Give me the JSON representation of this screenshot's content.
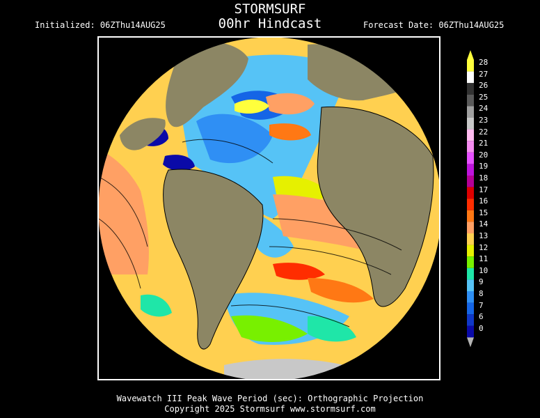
{
  "header": {
    "title": "STORMSURF",
    "subtitle": "00hr Hindcast",
    "initialized": "Initialized: 06ZThu14AUG25",
    "forecast_date": "Forecast Date: 06ZThu14AUG25"
  },
  "footer": {
    "line1": "Wavewatch III Peak Wave Period (sec): Orthographic Projection",
    "line2": "Copyright 2025 Stormsurf www.stormsurf.com"
  },
  "legend": {
    "values": [
      "0",
      "6",
      "7",
      "8",
      "9",
      "10",
      "11",
      "12",
      "13",
      "14",
      "15",
      "16",
      "17",
      "18",
      "19",
      "20",
      "21",
      "22",
      "23",
      "24",
      "25",
      "26",
      "27",
      "28"
    ],
    "colors": [
      "#0a0aa8",
      "#0f37c8",
      "#1565e6",
      "#2f8ff4",
      "#56c3f6",
      "#1fe6a8",
      "#78f000",
      "#e6f000",
      "#ffd050",
      "#ffa064",
      "#ff7814",
      "#ff2d00",
      "#dc0000",
      "#b40096",
      "#be14dc",
      "#e650ff",
      "#f58cf0",
      "#ffbcf0",
      "#c8c8c8",
      "#a0a0a0",
      "#5a5a5a",
      "#323232",
      "#ffffff",
      "#ffff3c"
    ]
  }
}
